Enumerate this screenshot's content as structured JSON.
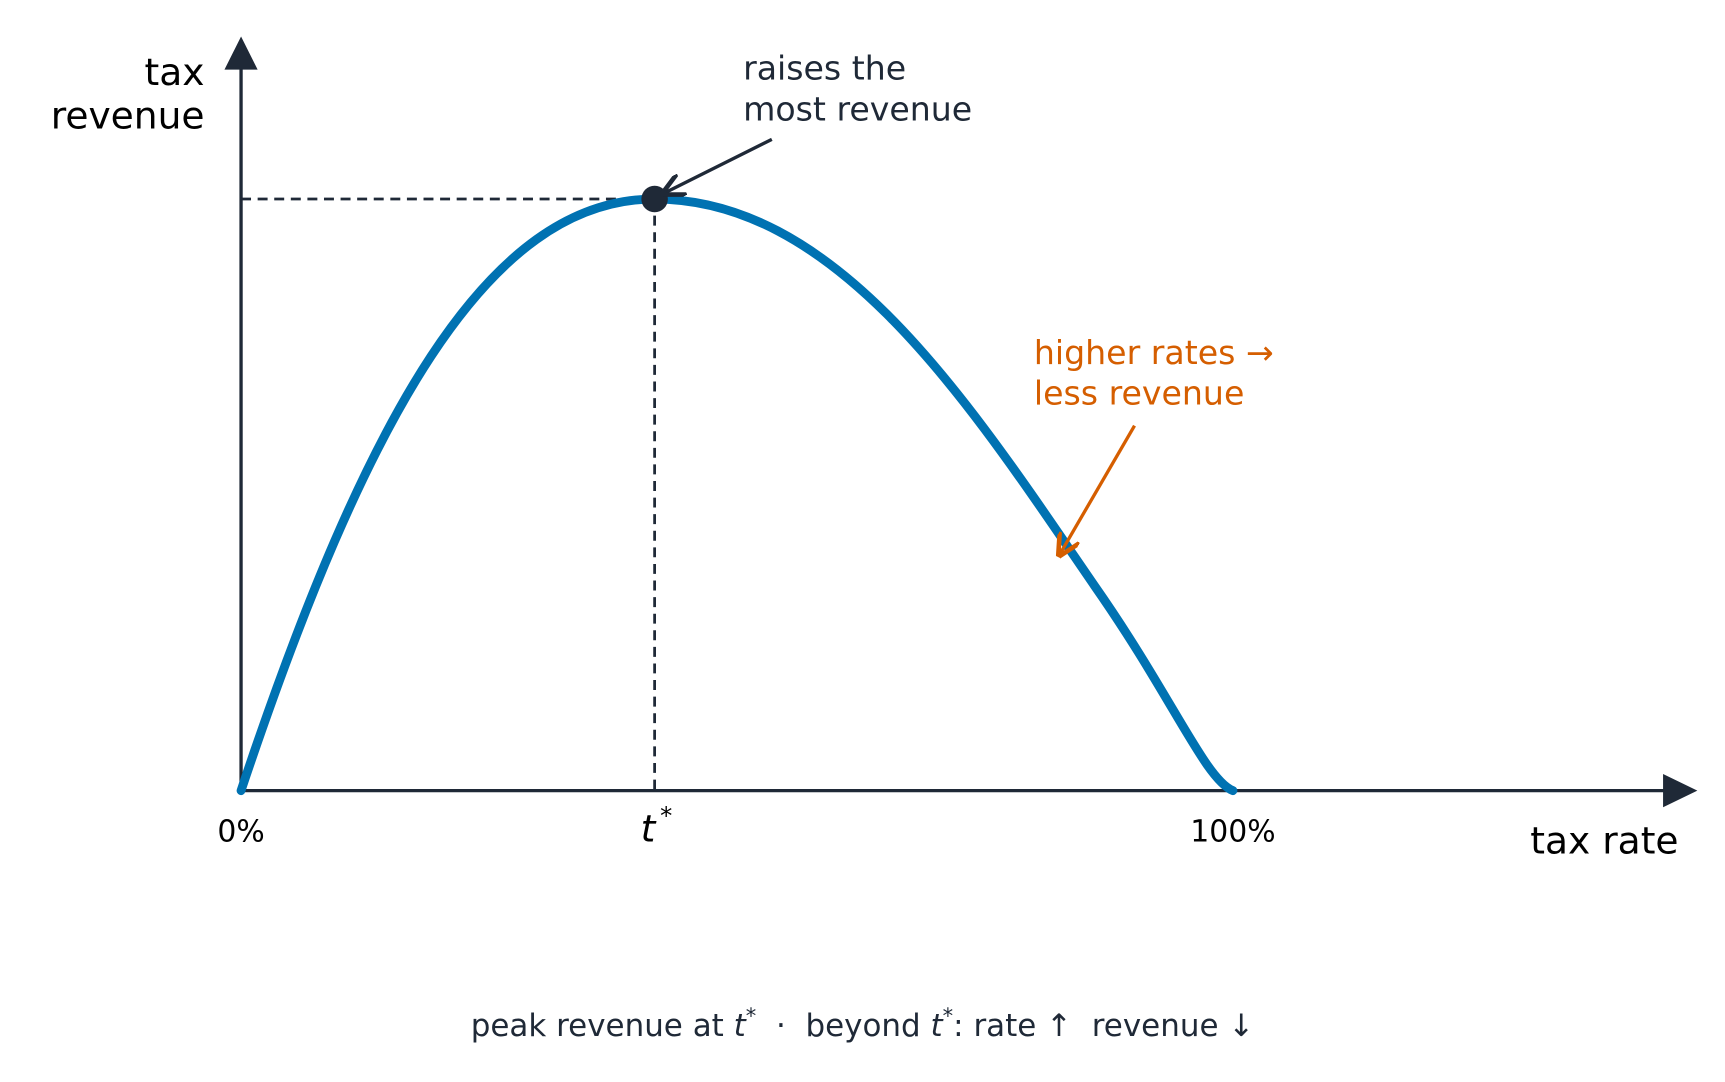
{
  "axes": {
    "y_label": [
      "tax",
      "revenue"
    ],
    "x_label": "tax rate"
  },
  "x_ticks": {
    "start": "0%",
    "peak_symbol": "t",
    "peak_superscript": "*",
    "end": "100%"
  },
  "annotations": {
    "peak": [
      "raises the",
      "most revenue"
    ],
    "decline": [
      "higher rates →",
      "less revenue"
    ]
  },
  "caption": [
    "peak revenue at ",
    "t",
    "*",
    "  ·  beyond ",
    "t",
    "*",
    ": rate ↑  revenue ↓"
  ]
}
